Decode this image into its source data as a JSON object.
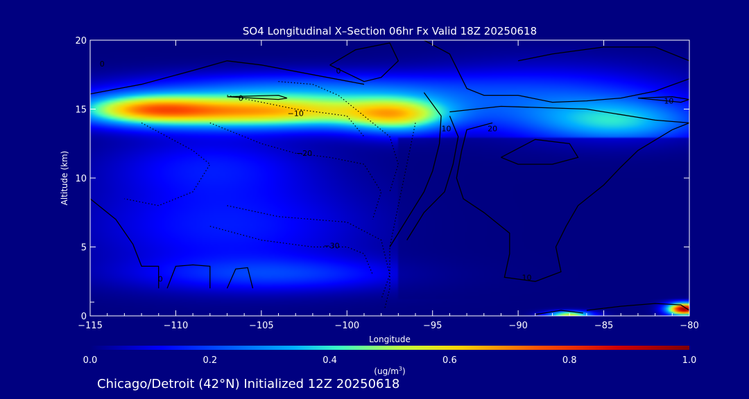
{
  "chart_data": {
    "type": "heatmap",
    "title": "SO4 Longitudinal X–Section 06hr  Fx Valid 18Z 20250618",
    "xlabel": "Longitude",
    "ylabel": "Altitude (km)",
    "xlim": [
      -115,
      -80
    ],
    "ylim": [
      0,
      20
    ],
    "x_ticks": [
      -115,
      -110,
      -105,
      -100,
      -95,
      -90,
      -85,
      -80
    ],
    "x_tick_labels": [
      "−115",
      "−110",
      "−105",
      "−100",
      "−95",
      "−90",
      "−85",
      "−80"
    ],
    "y_ticks": [
      0,
      5,
      10,
      15,
      20
    ],
    "y_tick_labels": [
      "0",
      "5",
      "10",
      "15",
      "20"
    ],
    "colorbar": {
      "min": 0.0,
      "max": 1.0,
      "ticks": [
        0.0,
        0.2,
        0.4,
        0.6,
        0.8,
        1.0
      ],
      "tick_labels": [
        "0.0",
        "0.2",
        "0.4",
        "0.6",
        "0.8",
        "1.0"
      ],
      "units_label": "(ug/m",
      "units_sup": "3",
      "units_close": ")"
    },
    "fields": [
      {
        "name": "upper-layer",
        "center": [
          -105,
          14.8
        ],
        "spread": [
          8,
          1.2
        ],
        "value": 0.62
      },
      {
        "name": "upper-layer-west",
        "center": [
          -112,
          15.0
        ],
        "spread": [
          4,
          1.1
        ],
        "value": 0.42
      },
      {
        "name": "upper-layer-east",
        "center": [
          -97,
          14.5
        ],
        "spread": [
          3,
          1.3
        ],
        "value": 0.38
      },
      {
        "name": "upper-layer-far-east",
        "center": [
          -84,
          14.0
        ],
        "spread": [
          5,
          1.6
        ],
        "value": 0.28
      },
      {
        "name": "upper-top",
        "center": [
          -103,
          16.5
        ],
        "spread": [
          10,
          1.2
        ],
        "value": 0.22
      },
      {
        "name": "upper-top-east",
        "center": [
          -88,
          15.5
        ],
        "spread": [
          8,
          2.5
        ],
        "value": 0.2
      },
      {
        "name": "mid-west",
        "center": [
          -107,
          6.5
        ],
        "spread": [
          8,
          3.5
        ],
        "value": 0.15
      },
      {
        "name": "mid-west-2",
        "center": [
          -108,
          11
        ],
        "spread": [
          6,
          2.2
        ],
        "value": 0.12
      },
      {
        "name": "low-west",
        "center": [
          -104,
          3
        ],
        "spread": [
          8,
          1.2
        ],
        "value": 0.16
      },
      {
        "name": "surface-east-1",
        "center": [
          -87,
          0.1
        ],
        "spread": [
          1.3,
          0.25
        ],
        "value": 0.55
      },
      {
        "name": "surface-east-2",
        "center": [
          -80.3,
          0.5
        ],
        "spread": [
          1.0,
          0.45
        ],
        "value": 0.95
      }
    ],
    "contours": [
      {
        "style": "solid",
        "label": "10",
        "label_at": [
          -94.2,
          13.6
        ],
        "points": [
          [
            -95.5,
            16.2
          ],
          [
            -94.5,
            14.5
          ],
          [
            -94.6,
            12.5
          ],
          [
            -95,
            10.5
          ],
          [
            -95.5,
            9
          ],
          [
            -96.5,
            7
          ],
          [
            -97.5,
            5
          ]
        ]
      },
      {
        "style": "solid",
        "label": "",
        "points": [
          [
            -94,
            14.5
          ],
          [
            -93.5,
            13
          ],
          [
            -93.8,
            11
          ],
          [
            -94.3,
            9
          ],
          [
            -95.5,
            7.5
          ],
          [
            -96.5,
            5.5
          ]
        ]
      },
      {
        "style": "solid",
        "label": "20",
        "label_at": [
          -91.5,
          13.6
        ],
        "points": [
          [
            -91.5,
            14
          ],
          [
            -93,
            13.5
          ],
          [
            -93.3,
            12
          ],
          [
            -93.6,
            10
          ],
          [
            -93.2,
            8.5
          ],
          [
            -92,
            7.5
          ],
          [
            -90.5,
            6
          ],
          [
            -90.5,
            4.5
          ],
          [
            -90.8,
            2.8
          ],
          [
            -89,
            2.5
          ],
          [
            -87.5,
            3.2
          ],
          [
            -87.8,
            5
          ],
          [
            -87.2,
            6.5
          ],
          [
            -86.5,
            8
          ],
          [
            -85,
            9.5
          ],
          [
            -84,
            10.8
          ],
          [
            -83,
            12
          ],
          [
            -81,
            13.5
          ],
          [
            -80,
            14
          ]
        ]
      },
      {
        "style": "solid",
        "label": "10",
        "label_at": [
          -89.5,
          2.8
        ],
        "points": [
          [
            -94,
            14.8
          ],
          [
            -91,
            15.2
          ],
          [
            -86,
            15
          ],
          [
            -82,
            14.2
          ],
          [
            -80,
            14
          ]
        ]
      },
      {
        "style": "solid",
        "label": "",
        "points": [
          [
            -91,
            11.5
          ],
          [
            -89,
            12.8
          ],
          [
            -87,
            12.5
          ],
          [
            -86.5,
            11.5
          ],
          [
            -88,
            11
          ],
          [
            -90,
            11
          ],
          [
            -91,
            11.5
          ]
        ]
      },
      {
        "style": "solid",
        "label": "0",
        "label_at": [
          -114.3,
          18.3
        ],
        "points": [
          [
            -115,
            16.1
          ],
          [
            -112,
            16.8
          ],
          [
            -109,
            17.8
          ],
          [
            -107,
            18.5
          ],
          [
            -105,
            18.2
          ],
          [
            -102,
            17.5
          ],
          [
            -99,
            16.8
          ]
        ]
      },
      {
        "style": "solid",
        "label": "0",
        "label_at": [
          -100.5,
          17.8
        ],
        "points": [
          [
            -101,
            18.2
          ],
          [
            -99.5,
            19.3
          ],
          [
            -97.5,
            19.8
          ],
          [
            -97,
            18.5
          ],
          [
            -98,
            17.3
          ],
          [
            -99,
            17
          ],
          [
            -101,
            18.2
          ]
        ]
      },
      {
        "style": "solid",
        "label": "",
        "points": [
          [
            -95.5,
            20
          ],
          [
            -94,
            19
          ],
          [
            -93,
            16.5
          ],
          [
            -92,
            16
          ],
          [
            -90,
            16
          ],
          [
            -88,
            15.5
          ],
          [
            -86,
            15.6
          ],
          [
            -84,
            15.8
          ],
          [
            -82,
            16.3
          ],
          [
            -80,
            17.2
          ]
        ]
      },
      {
        "style": "solid",
        "label": "",
        "points": [
          [
            -90,
            18.5
          ],
          [
            -88,
            19
          ],
          [
            -85,
            19.5
          ],
          [
            -82,
            19.5
          ],
          [
            -80,
            18.5
          ]
        ]
      },
      {
        "style": "solid",
        "label": "0",
        "label_at": [
          -110.9,
          2.7
        ],
        "points": [
          [
            -115,
            8.5
          ],
          [
            -113.5,
            7
          ],
          [
            -112.5,
            5.2
          ],
          [
            -112,
            3.6
          ],
          [
            -111,
            3.6
          ],
          [
            -111,
            2
          ]
        ]
      },
      {
        "style": "solid",
        "label": "",
        "points": [
          [
            -110.5,
            2
          ],
          [
            -110,
            3.6
          ],
          [
            -109,
            3.7
          ],
          [
            -108,
            3.6
          ],
          [
            -108,
            2
          ]
        ]
      },
      {
        "style": "solid",
        "label": "",
        "points": [
          [
            -107,
            2
          ],
          [
            -106.5,
            3.4
          ],
          [
            -105.8,
            3.5
          ],
          [
            -105.5,
            2
          ]
        ]
      },
      {
        "style": "solid",
        "label": "10",
        "label_at": [
          -81.2,
          15.6
        ],
        "points": [
          [
            -83,
            15.8
          ],
          [
            -81,
            15.9
          ],
          [
            -80,
            15.7
          ],
          [
            -80.5,
            15.5
          ],
          [
            -83,
            15.8
          ]
        ]
      },
      {
        "style": "solid",
        "label": "0",
        "label_at": [
          -106.2,
          15.8
        ],
        "points": [
          [
            -107,
            15.9
          ],
          [
            -104,
            16
          ],
          [
            -103.5,
            15.8
          ],
          [
            -104,
            15.7
          ],
          [
            -107,
            15.9
          ]
        ]
      },
      {
        "style": "dotted",
        "label": "−10",
        "label_at": [
          -103,
          14.7
        ],
        "points": [
          [
            -107,
            16
          ],
          [
            -103,
            15
          ],
          [
            -100,
            14.5
          ],
          [
            -99,
            13
          ]
        ]
      },
      {
        "style": "dotted",
        "label": "",
        "points": [
          [
            -104,
            17
          ],
          [
            -102,
            16.8
          ],
          [
            -100.5,
            16
          ],
          [
            -99,
            14.5
          ],
          [
            -97.5,
            13
          ],
          [
            -97,
            11
          ],
          [
            -97.5,
            9
          ]
        ]
      },
      {
        "style": "dotted",
        "label": "−20",
        "label_at": [
          -102.5,
          11.8
        ],
        "points": [
          [
            -108,
            14
          ],
          [
            -105,
            12.5
          ],
          [
            -103,
            11.8
          ],
          [
            -101,
            11.5
          ],
          [
            -99,
            11
          ],
          [
            -98,
            9
          ],
          [
            -98.5,
            7
          ]
        ]
      },
      {
        "style": "dotted",
        "label": "",
        "points": [
          [
            -112,
            14
          ],
          [
            -109,
            12
          ],
          [
            -108,
            11
          ],
          [
            -109,
            9
          ],
          [
            -111,
            8
          ],
          [
            -113,
            8.5
          ]
        ]
      },
      {
        "style": "dotted",
        "label": "−30",
        "label_at": [
          -100.9,
          5.1
        ],
        "points": [
          [
            -108,
            6.5
          ],
          [
            -105,
            5.5
          ],
          [
            -102,
            5
          ],
          [
            -100,
            5
          ],
          [
            -99,
            4.5
          ],
          [
            -98.5,
            3
          ]
        ]
      },
      {
        "style": "dotted",
        "label": "",
        "points": [
          [
            -107,
            8
          ],
          [
            -104,
            7.2
          ],
          [
            -100,
            6.8
          ],
          [
            -98,
            5.5
          ],
          [
            -97.5,
            3
          ],
          [
            -98,
            1.2
          ]
        ]
      },
      {
        "style": "dotted",
        "label": "",
        "points": [
          [
            -96,
            14
          ],
          [
            -96.5,
            11
          ],
          [
            -97,
            8
          ],
          [
            -97.5,
            5
          ],
          [
            -97.5,
            2
          ],
          [
            -97.8,
            0.5
          ]
        ]
      },
      {
        "style": "solid",
        "label": "",
        "points": [
          [
            -86,
            0.4
          ],
          [
            -84,
            0.7
          ],
          [
            -82,
            0.9
          ],
          [
            -80.5,
            0.8
          ],
          [
            -80,
            0.4
          ]
        ]
      },
      {
        "style": "solid",
        "label": "",
        "points": [
          [
            -89,
            0.1
          ],
          [
            -87.5,
            0.4
          ],
          [
            -86.2,
            0.2
          ]
        ]
      }
    ]
  },
  "footer": {
    "caption": "Chicago/Detroit (42°N) Initialized 12Z 20250618"
  }
}
